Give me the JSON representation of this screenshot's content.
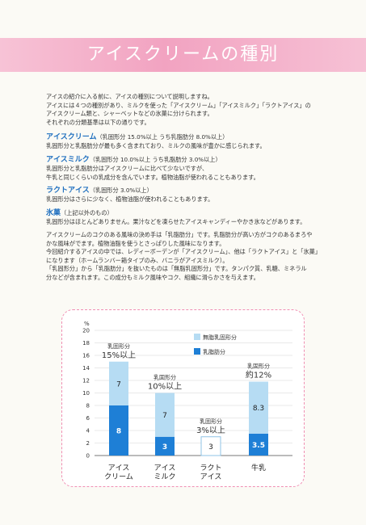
{
  "banner": {
    "title": "アイスクリームの種別"
  },
  "intro": [
    "アイスの紹介に入る前に、アイスの種別について説明しますね。",
    "アイスには４つの種別があり、ミルクを使った「アイスクリーム」「アイスミルク」「ラクトアイス」の",
    "アイスクリーム類と、シャーベットなどの氷菓に分けられます。",
    "それぞれの分類基準は以下の通りです。"
  ],
  "types": [
    {
      "name": "アイスクリーム",
      "spec": "（乳固形分 15.0%以上 うち乳脂肪分 8.0%以上）",
      "desc": [
        "乳固形分と乳脂肪分が最も多く含まれており、ミルクの風味が豊かに感じられます。"
      ]
    },
    {
      "name": "アイスミルク",
      "spec": "（乳固形分 10.0%以上 うち乳脂肪分 3.0%以上）",
      "desc": [
        "乳固形分と乳脂肪分はアイスクリームに比べて少ないですが、",
        "牛乳と同じくらいの乳成分を含んでいます。植物油脂が使われることもあります。"
      ]
    },
    {
      "name": "ラクトアイス",
      "spec": "（乳固形分 3.0%以上）",
      "desc": [
        "乳固形分はさらに少なく、植物油脂が使われることもあります。"
      ]
    },
    {
      "name": "氷菓",
      "spec": "（上記以外のもの）",
      "desc": [
        "乳固形分はほとんどありません。果汁などを凍らせたアイスキャンディーやかき氷などがあります。"
      ]
    }
  ],
  "para2": [
    "アイスクリームのコクのある風味の決め手は「乳脂肪分」です。乳脂肪分が高い方がコクのあるまろや",
    "かな風味がでます。植物油脂を使うとさっぱりした風味になります。",
    "今回紹介するアイスの中では、レディーボーデンが「アイスクリーム」、他は「ラクトアイス」と「氷菓」",
    "になります（ホームランバー箱タイプのみ、バニラがアイスミルク）。",
    "「乳固形分」から「乳脂肪分」を抜いたものは「無脂乳固形分」です。タンパク質、乳糖、ミネラル",
    "分などが含まれます。この成分もミルク風味やコク、組織に滑らかさを与えます。"
  ],
  "chart_data": {
    "type": "bar",
    "stacked": true,
    "unit_label": "%",
    "ylim": [
      0,
      20
    ],
    "yticks": [
      0,
      2,
      4,
      6,
      8,
      10,
      12,
      14,
      16,
      18,
      20
    ],
    "categories": [
      "アイス\nクリーム",
      "アイス\nミルク",
      "ラクト\nアイス",
      "牛乳"
    ],
    "series": [
      {
        "name": "乳脂肪分",
        "values": [
          8,
          3,
          0,
          3.5
        ],
        "color": "#1e7fd6"
      },
      {
        "name": "無脂乳固形分",
        "values": [
          7,
          7,
          3,
          8.3
        ],
        "color": "#b6dcf3"
      }
    ],
    "segment_labels": [
      [
        "8",
        "7"
      ],
      [
        "3",
        "7"
      ],
      [
        null,
        "3"
      ],
      [
        "3.5",
        "8.3"
      ]
    ],
    "annotations": [
      {
        "top": "乳固形分",
        "bottom": "15%以上"
      },
      {
        "top": "乳固形分",
        "bottom": "10%以上"
      },
      {
        "top": "乳固形分",
        "bottom": "3%以上"
      },
      {
        "top": "乳固形分",
        "bottom": "約12%"
      }
    ],
    "legend_position": "top-right",
    "grid": true
  }
}
